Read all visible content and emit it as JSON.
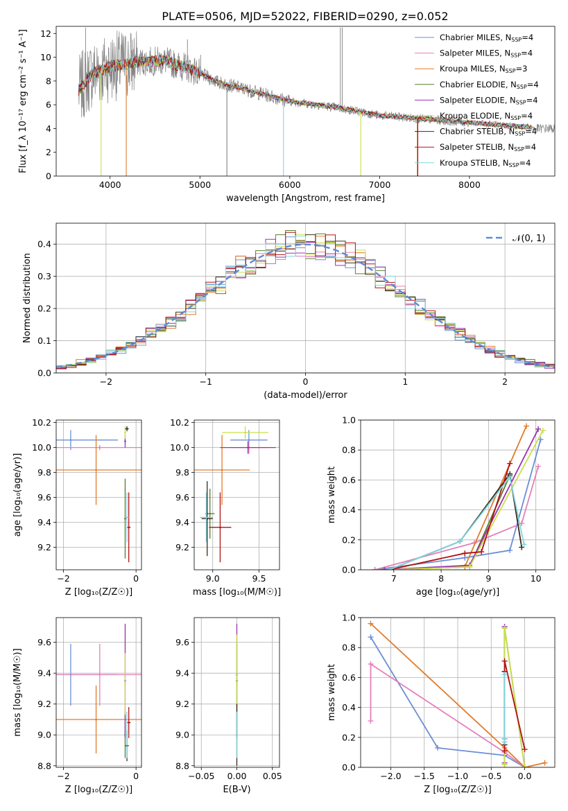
{
  "title": "PLATE=0506, MJD=52022, FIBERID=0290, z=0.052",
  "colors": {
    "Chabrier MILES": "#6a8fd6",
    "Salpeter MILES": "#e57fb8",
    "Kroupa MILES": "#e07b2a",
    "Chabrier ELODIE": "#5a7d2a",
    "Salpeter ELODIE": "#9b30b0",
    "Kroupa ELODIE": "#c8e04a",
    "Chabrier STELIB": "#3a2a1a",
    "Salpeter STELIB": "#b01010",
    "Kroupa STELIB": "#7fd6e0",
    "data": "#808080",
    "gaussian": "#5b8bd6"
  },
  "chart_data": [
    {
      "id": "spectrum",
      "type": "line",
      "xlabel": "wavelength [Angstrom, rest frame]",
      "ylabel": "Flux [f_λ 10⁻¹⁷ erg cm⁻² s⁻¹ A⁻¹]",
      "xlim": [
        3400,
        8950
      ],
      "ylim": [
        0,
        12.6
      ],
      "xticks": [
        4000,
        5000,
        6000,
        7000,
        8000
      ],
      "yticks": [
        0,
        2,
        4,
        6,
        8,
        10,
        12
      ],
      "legend": [
        {
          "name": "Chabrier MILES",
          "nssp": "4"
        },
        {
          "name": "Salpeter MILES",
          "nssp": "4"
        },
        {
          "name": "Kroupa MILES",
          "nssp": "3"
        },
        {
          "name": "Chabrier ELODIE",
          "nssp": "4"
        },
        {
          "name": "Salpeter ELODIE",
          "nssp": "4"
        },
        {
          "name": "Kroupa ELODIE",
          "nssp": "4"
        },
        {
          "name": "Chabrier STELIB",
          "nssp": "4"
        },
        {
          "name": "Salpeter STELIB",
          "nssp": "4"
        },
        {
          "name": "Kroupa STELIB",
          "nssp": "4"
        }
      ],
      "legend_position": "top-right",
      "continuum": [
        [
          3650,
          7.2
        ],
        [
          3800,
          8.6
        ],
        [
          4000,
          9.2
        ],
        [
          4300,
          9.6
        ],
        [
          4600,
          9.7
        ],
        [
          4900,
          9.0
        ],
        [
          5200,
          7.9
        ],
        [
          5600,
          7.1
        ],
        [
          6000,
          6.3
        ],
        [
          6500,
          5.8
        ],
        [
          7000,
          5.1
        ],
        [
          7500,
          4.8
        ],
        [
          8000,
          4.5
        ],
        [
          8500,
          4.2
        ],
        [
          8700,
          4.1
        ]
      ],
      "model_range": [
        3650,
        8700
      ],
      "emission_lines": [
        [
          3727,
          12.5
        ],
        [
          4861,
          11.5
        ],
        [
          6563,
          12.5
        ],
        [
          6584,
          12.5
        ],
        [
          4340,
          10.5
        ],
        [
          5007,
          10.2
        ]
      ],
      "dropouts": [
        [
          3900,
          "Kroupa ELODIE"
        ],
        [
          4180,
          "Kroupa MILES"
        ],
        [
          5300,
          "data"
        ],
        [
          5930,
          "Kroupa STELIB"
        ],
        [
          6790,
          "Kroupa ELODIE"
        ],
        [
          7420,
          "Kroupa MILES"
        ],
        [
          7425,
          "Salpeter STELIB"
        ]
      ]
    },
    {
      "id": "residuals",
      "type": "line",
      "xlabel": "(data-model)/error",
      "ylabel": "Normed distribution",
      "xlim": [
        -2.5,
        2.5
      ],
      "ylim": [
        0,
        0.465
      ],
      "xticks": [
        -2,
        -1,
        0,
        1,
        2
      ],
      "yticks": [
        0.0,
        0.1,
        0.2,
        0.3,
        0.4
      ],
      "legend": [
        "N(0,1)"
      ],
      "legend_position": "top-right",
      "bin_width": 0.1,
      "grid": true
    },
    {
      "id": "age-vs-Z",
      "type": "scatter",
      "xlabel": "Z [log₁₀(Z/Z☉)]",
      "ylabel": "age  [log₁₀(age/yr)]",
      "xlim": [
        -2.2,
        0.15
      ],
      "ylim": [
        9.02,
        10.22
      ],
      "xticks": [
        -2,
        0
      ],
      "yticks": [
        9.2,
        9.4,
        9.6,
        9.8,
        10.0,
        10.2
      ],
      "points": [
        {
          "model": "Chabrier MILES",
          "x": -1.8,
          "xerr": 1.3,
          "y": 10.06,
          "yerr": 0.08
        },
        {
          "model": "Salpeter MILES",
          "x": -1.0,
          "xerr": 2.2,
          "y": 10.0,
          "yerr": 0.02
        },
        {
          "model": "Kroupa MILES",
          "x": -1.1,
          "xerr": 1.9,
          "y": 9.82,
          "yerr": 0.28
        },
        {
          "model": "Chabrier ELODIE",
          "x": -0.3,
          "xerr": 0.02,
          "y": 9.43,
          "yerr": 0.32
        },
        {
          "model": "Salpeter ELODIE",
          "x": -0.3,
          "xerr": 0.02,
          "y": 10.05,
          "yerr": 0.05
        },
        {
          "model": "Kroupa ELODIE",
          "x": -0.3,
          "xerr": 0.02,
          "y": 10.12,
          "yerr": 0.05
        },
        {
          "model": "Chabrier STELIB",
          "x": -0.25,
          "xerr": 0.05,
          "y": 10.15,
          "yerr": 0.02
        },
        {
          "model": "Salpeter STELIB",
          "x": -0.2,
          "xerr": 0.05,
          "y": 9.36,
          "yerr": 0.28
        },
        {
          "model": "Kroupa STELIB",
          "x": -0.25,
          "xerr": 0.05,
          "y": 9.44,
          "yerr": 0.2
        }
      ]
    },
    {
      "id": "age-vs-mass",
      "type": "scatter",
      "xlabel": "mass [log₁₀(M/M☉)]",
      "ylabel": "",
      "xlim": [
        8.8,
        9.72
      ],
      "ylim": [
        9.02,
        10.22
      ],
      "xticks": [
        9.0,
        9.5
      ],
      "yticks": [
        9.2,
        9.4,
        9.6,
        9.8,
        10.0,
        10.2
      ],
      "points": [
        {
          "model": "Chabrier MILES",
          "x": 9.39,
          "xerr": 0.2,
          "y": 10.06,
          "yerr": 0.08
        },
        {
          "model": "Salpeter MILES",
          "x": 9.39,
          "xerr": 0.2,
          "y": 10.0,
          "yerr": 0.05
        },
        {
          "model": "Kroupa MILES",
          "x": 9.1,
          "xerr": 0.3,
          "y": 9.82,
          "yerr": 0.28
        },
        {
          "model": "Chabrier ELODIE",
          "x": 8.97,
          "xerr": 0.05,
          "y": 9.47,
          "yerr": 0.2
        },
        {
          "model": "Salpeter ELODIE",
          "x": 9.38,
          "xerr": 0.3,
          "y": 10.0,
          "yerr": 0.05
        },
        {
          "model": "Kroupa ELODIE",
          "x": 9.35,
          "xerr": 0.25,
          "y": 10.12,
          "yerr": 0.05
        },
        {
          "model": "Chabrier STELIB",
          "x": 8.94,
          "xerr": 0.06,
          "y": 9.43,
          "yerr": 0.3
        },
        {
          "model": "Salpeter STELIB",
          "x": 9.08,
          "xerr": 0.12,
          "y": 9.36,
          "yerr": 0.28
        },
        {
          "model": "Kroupa STELIB",
          "x": 8.93,
          "xerr": 0.07,
          "y": 9.44,
          "yerr": 0.2
        }
      ]
    },
    {
      "id": "weight-vs-age",
      "type": "line",
      "xlabel": "age  [log₁₀(age/yr)]",
      "ylabel": "mass weight",
      "xlim": [
        6.3,
        10.4
      ],
      "ylim": [
        0,
        1.0
      ],
      "xticks": [
        7,
        8,
        9,
        10
      ],
      "yticks": [
        0.0,
        0.2,
        0.4,
        0.6,
        0.8,
        1.0
      ],
      "series": [
        {
          "model": "Chabrier MILES",
          "x": [
            6.6,
            8.5,
            9.45,
            10.1
          ],
          "y": [
            0.0,
            0.08,
            0.13,
            0.87
          ]
        },
        {
          "model": "Salpeter MILES",
          "x": [
            6.6,
            8.7,
            9.7,
            10.05
          ],
          "y": [
            0.0,
            0.18,
            0.31,
            0.69
          ]
        },
        {
          "model": "Kroupa MILES",
          "x": [
            6.9,
            8.5,
            9.8
          ],
          "y": [
            0.0,
            0.02,
            0.96
          ]
        },
        {
          "model": "Chabrier ELODIE",
          "x": [
            6.9,
            8.6,
            9.45
          ],
          "y": [
            0.0,
            0.02,
            0.63
          ]
        },
        {
          "model": "Salpeter ELODIE",
          "x": [
            6.8,
            8.6,
            10.05
          ],
          "y": [
            0.0,
            0.03,
            0.94
          ]
        },
        {
          "model": "Kroupa ELODIE",
          "x": [
            6.9,
            8.6,
            10.15
          ],
          "y": [
            0.0,
            0.02,
            0.93
          ]
        },
        {
          "model": "Chabrier STELIB",
          "x": [
            6.9,
            8.4,
            9.45,
            9.7
          ],
          "y": [
            0.0,
            0.19,
            0.64,
            0.15
          ]
        },
        {
          "model": "Salpeter STELIB",
          "x": [
            6.9,
            8.5,
            8.85,
            9.45
          ],
          "y": [
            0.0,
            0.11,
            0.12,
            0.71
          ]
        },
        {
          "model": "Kroupa STELIB",
          "x": [
            6.9,
            8.4,
            9.45,
            9.75
          ],
          "y": [
            0.0,
            0.19,
            0.62,
            0.17
          ]
        }
      ]
    },
    {
      "id": "mass-vs-Z",
      "type": "scatter",
      "xlabel": "Z [log₁₀(Z/Z☉)]",
      "ylabel": "mass [log₁₀(M/M☉)]",
      "xlim": [
        -2.2,
        0.15
      ],
      "ylim": [
        8.79,
        9.76
      ],
      "xticks": [
        -2,
        0
      ],
      "yticks": [
        8.8,
        9.0,
        9.2,
        9.4,
        9.6
      ],
      "points": [
        {
          "model": "Chabrier MILES",
          "x": -1.8,
          "xerr": 1.3,
          "y": 9.39,
          "yerr": 0.2
        },
        {
          "model": "Salpeter MILES",
          "x": -1.0,
          "xerr": 2.2,
          "y": 9.39,
          "yerr": 0.2
        },
        {
          "model": "Kroupa MILES",
          "x": -1.1,
          "xerr": 1.9,
          "y": 9.1,
          "yerr": 0.22
        },
        {
          "model": "Chabrier ELODIE",
          "x": -0.3,
          "xerr": 0.02,
          "y": 9.0,
          "yerr": 0.15
        },
        {
          "model": "Salpeter ELODIE",
          "x": -0.3,
          "xerr": 0.02,
          "y": 9.35,
          "yerr": 0.37
        },
        {
          "model": "Kroupa ELODIE",
          "x": -0.3,
          "xerr": 0.02,
          "y": 9.33,
          "yerr": 0.2
        },
        {
          "model": "Chabrier STELIB",
          "x": -0.25,
          "xerr": 0.05,
          "y": 8.93,
          "yerr": 0.1
        },
        {
          "model": "Salpeter STELIB",
          "x": -0.2,
          "xerr": 0.05,
          "y": 9.08,
          "yerr": 0.1
        },
        {
          "model": "Kroupa STELIB",
          "x": -0.25,
          "xerr": 0.05,
          "y": 9.0,
          "yerr": 0.15
        }
      ]
    },
    {
      "id": "mass-vs-ebv",
      "type": "scatter",
      "xlabel": "E(B-V)",
      "ylabel": "",
      "xlim": [
        -0.06,
        0.06
      ],
      "ylim": [
        8.79,
        9.76
      ],
      "xticks": [
        -0.05,
        0.0,
        0.05
      ],
      "xticklabels": [
        "−0.05",
        "0.00",
        "0.05"
      ],
      "yticks": [
        8.8,
        9.0,
        9.2,
        9.4,
        9.6
      ],
      "points": [
        {
          "model": "Chabrier MILES",
          "x": 0.0,
          "y": 9.39,
          "yerr": 0.2
        },
        {
          "model": "Salpeter ELODIE",
          "x": 0.0,
          "y": 9.35,
          "yerr": 0.37
        },
        {
          "model": "Kroupa ELODIE",
          "x": 0.0,
          "y": 9.33,
          "yerr": 0.32
        },
        {
          "model": "Chabrier STELIB",
          "x": 0.0,
          "y": 9.0,
          "yerr": 0.2
        },
        {
          "model": "Kroupa STELIB",
          "x": 0.0,
          "y": 9.0,
          "yerr": 0.15
        }
      ]
    },
    {
      "id": "weight-vs-Z",
      "type": "line",
      "xlabel": "Z [log₁₀(Z/Z☉)]",
      "ylabel": "mass weight",
      "xlim": [
        -2.45,
        0.45
      ],
      "ylim": [
        0,
        1.0
      ],
      "xticks": [
        -2.0,
        -1.5,
        -1.0,
        -0.5,
        0.0
      ],
      "xticklabels": [
        "−2.0",
        "−1.5",
        "−1.0",
        "−0.5",
        "0.0"
      ],
      "yticks": [
        0.0,
        0.2,
        0.4,
        0.6,
        0.8,
        1.0
      ],
      "series": [
        {
          "model": "Chabrier MILES",
          "x": [
            -2.3,
            -1.3,
            -0.3,
            0.0
          ],
          "y": [
            0.87,
            0.13,
            0.08,
            0.0
          ]
        },
        {
          "model": "Salpeter MILES",
          "x": [
            -2.3,
            -2.3,
            -0.3,
            0.0
          ],
          "y": [
            0.31,
            0.69,
            0.1,
            0.0
          ]
        },
        {
          "model": "Kroupa MILES",
          "x": [
            -2.3,
            -0.3,
            0.0,
            0.3
          ],
          "y": [
            0.96,
            0.13,
            0.0,
            0.03
          ]
        },
        {
          "model": "Chabrier ELODIE",
          "x": [
            -0.3,
            -0.3,
            0.0
          ],
          "y": [
            0.02,
            0.93,
            0.0
          ]
        },
        {
          "model": "Salpeter ELODIE",
          "x": [
            -0.3,
            -0.3
          ],
          "y": [
            0.03,
            0.94
          ]
        },
        {
          "model": "Kroupa ELODIE",
          "x": [
            -0.3,
            -0.3,
            0.0
          ],
          "y": [
            0.02,
            0.93,
            0.0
          ]
        },
        {
          "model": "Chabrier STELIB",
          "x": [
            -0.3,
            -0.3,
            -0.3
          ],
          "y": [
            0.15,
            0.64,
            0.19
          ]
        },
        {
          "model": "Salpeter STELIB",
          "x": [
            -0.3,
            -0.3,
            0.0
          ],
          "y": [
            0.11,
            0.71,
            0.12
          ]
        },
        {
          "model": "Kroupa STELIB",
          "x": [
            -0.3,
            -0.3,
            -0.3
          ],
          "y": [
            0.17,
            0.62,
            0.19
          ]
        }
      ]
    }
  ]
}
